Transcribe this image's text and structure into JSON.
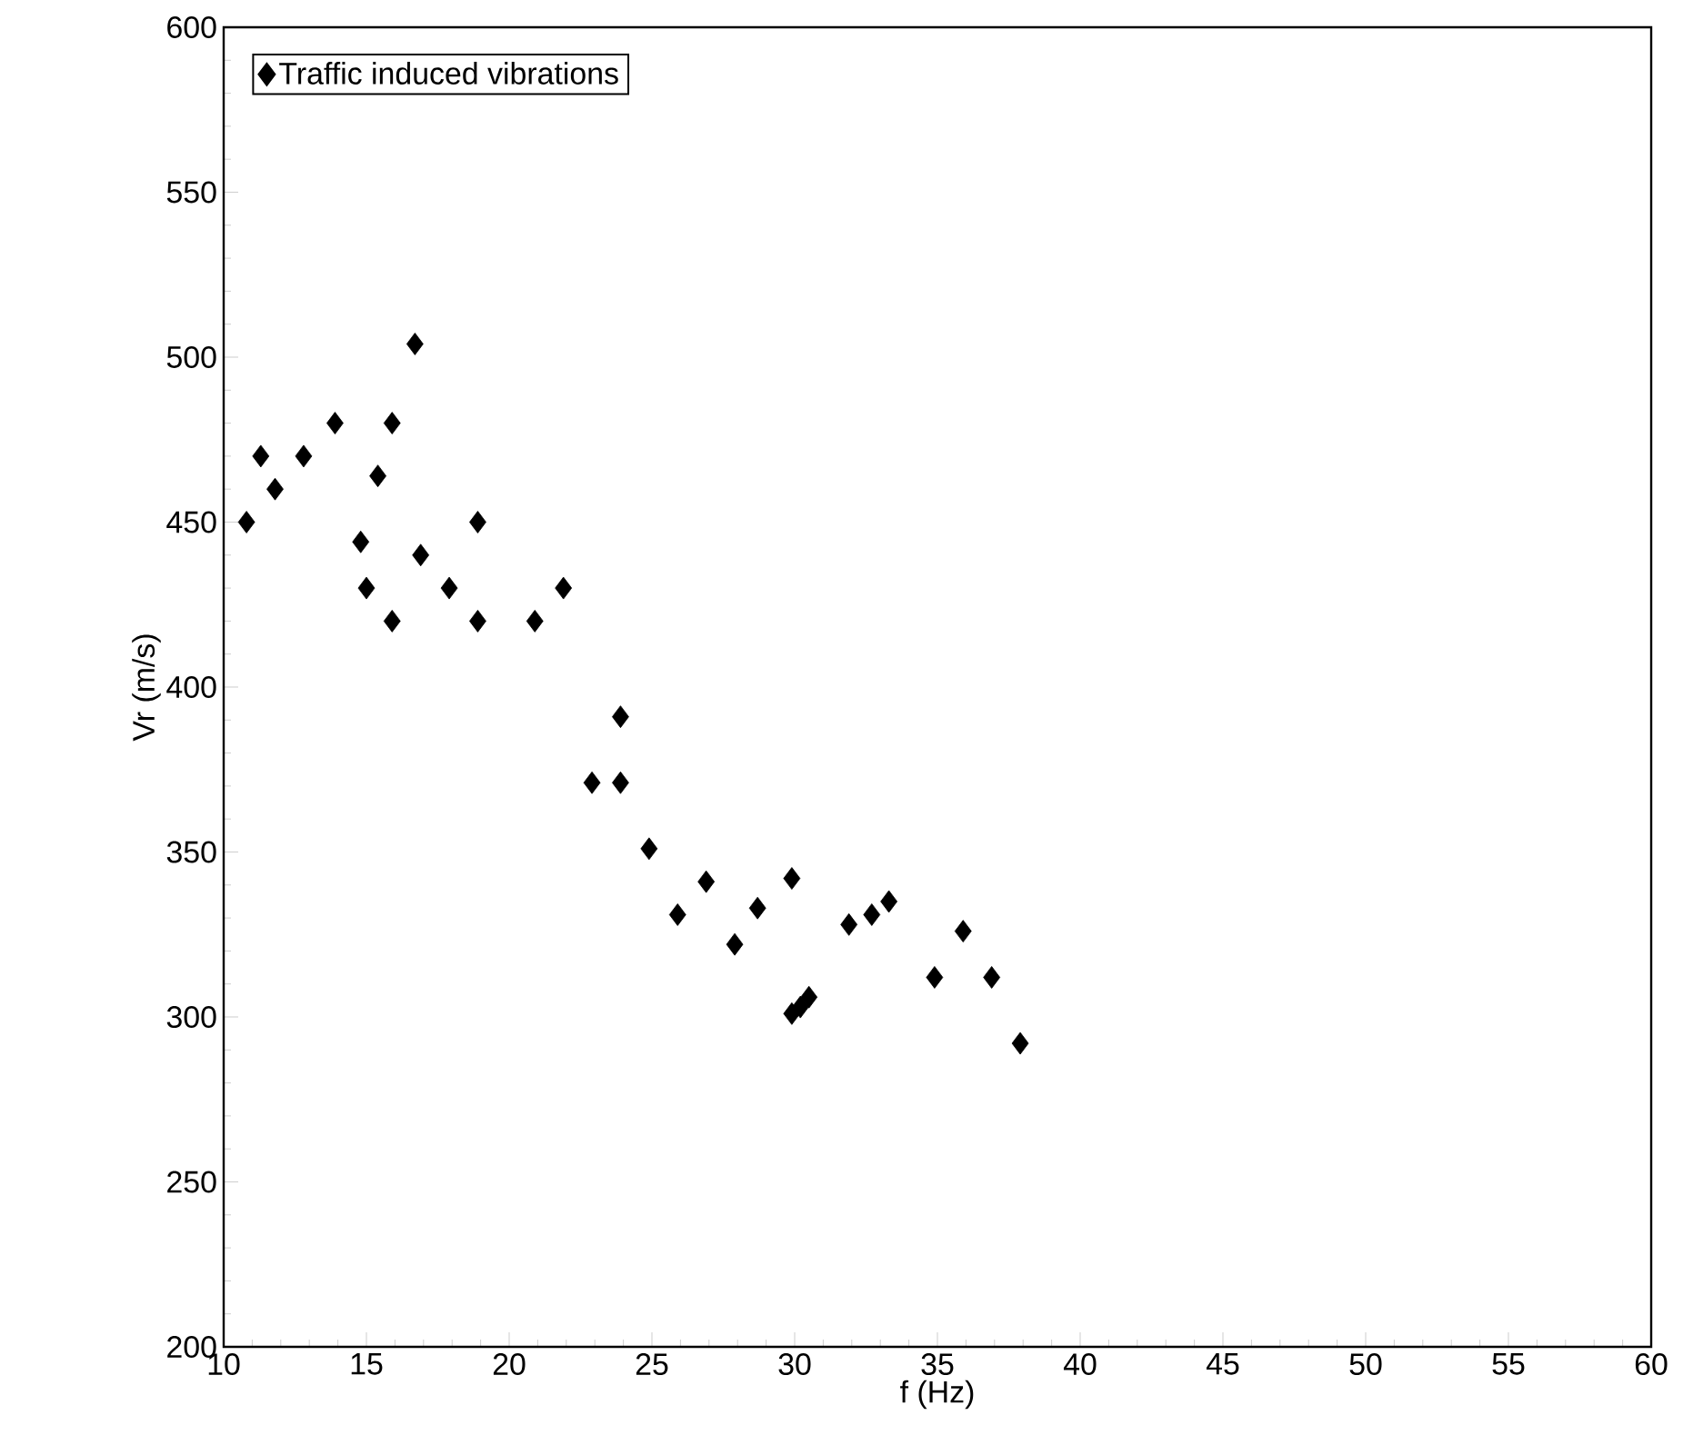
{
  "chart_data": {
    "type": "scatter",
    "xlabel": "f (Hz)",
    "ylabel": "Vr (m/s)",
    "xlim": [
      10,
      60
    ],
    "ylim": [
      200,
      600
    ],
    "xticks": [
      10,
      15,
      20,
      25,
      30,
      35,
      40,
      45,
      50,
      55,
      60
    ],
    "yticks": [
      200,
      250,
      300,
      350,
      400,
      450,
      500,
      550,
      600
    ],
    "legend": "top left",
    "marker": "diamond",
    "grid": false,
    "series": [
      {
        "name": "Traffic induced vibrations",
        "color": "#000000",
        "x": [
          10.8,
          11.3,
          11.8,
          12.8,
          13.9,
          14.8,
          15.0,
          15.4,
          15.9,
          15.9,
          16.7,
          16.9,
          17.9,
          18.9,
          18.9,
          20.9,
          21.9,
          22.9,
          23.9,
          23.9,
          24.9,
          25.9,
          26.9,
          27.9,
          28.7,
          29.9,
          29.9,
          30.2,
          30.5,
          31.9,
          32.7,
          33.3,
          34.9,
          35.9,
          36.9,
          37.9
        ],
        "values": [
          450,
          470,
          460,
          470,
          480,
          444,
          430,
          464,
          480,
          420,
          504,
          440,
          430,
          450,
          420,
          420,
          430,
          371,
          391,
          371,
          351,
          331,
          341,
          322,
          333,
          342,
          301,
          303,
          306,
          328,
          331,
          335,
          312,
          326,
          312,
          292
        ]
      }
    ]
  }
}
